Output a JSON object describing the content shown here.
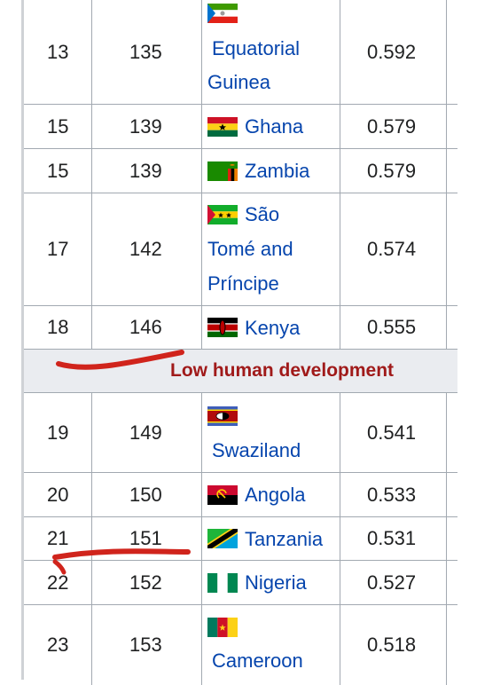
{
  "section_label": "Low human development",
  "rows_top": [
    {
      "rank": "13",
      "hdi_rank": "135",
      "country_lines": [
        "Equatorial",
        "Guinea"
      ],
      "flag": "equatorial-guinea-flag-icon",
      "value": "0.592"
    },
    {
      "rank": "15",
      "hdi_rank": "139",
      "country_lines": [
        "Ghana"
      ],
      "flag": "ghana-flag-icon",
      "value": "0.579"
    },
    {
      "rank": "15",
      "hdi_rank": "139",
      "country_lines": [
        "Zambia"
      ],
      "flag": "zambia-flag-icon",
      "value": "0.579"
    },
    {
      "rank": "17",
      "hdi_rank": "142",
      "country_lines": [
        "São",
        "Tomé and",
        "Príncipe"
      ],
      "flag": "sao-tome-flag-icon",
      "value": "0.574"
    },
    {
      "rank": "18",
      "hdi_rank": "146",
      "country_lines": [
        "Kenya"
      ],
      "flag": "kenya-flag-icon",
      "value": "0.555"
    }
  ],
  "rows_bottom": [
    {
      "rank": "19",
      "hdi_rank": "149",
      "country_lines": [
        "Swaziland"
      ],
      "flag": "eswatini-flag-icon",
      "value": "0.541"
    },
    {
      "rank": "20",
      "hdi_rank": "150",
      "country_lines": [
        "Angola"
      ],
      "flag": "angola-flag-icon",
      "value": "0.533"
    },
    {
      "rank": "21",
      "hdi_rank": "151",
      "country_lines": [
        "Tanzania"
      ],
      "flag": "tanzania-flag-icon",
      "value": "0.531"
    },
    {
      "rank": "22",
      "hdi_rank": "152",
      "country_lines": [
        "Nigeria"
      ],
      "flag": "nigeria-flag-icon",
      "value": "0.527"
    },
    {
      "rank": "23",
      "hdi_rank": "153",
      "country_lines": [
        "Cameroon"
      ],
      "flag": "cameroon-flag-icon",
      "value": "0.518"
    }
  ],
  "colors": {
    "link": "#0645ad",
    "section_text": "#a01a1a",
    "section_bg": "#eaecf0",
    "marker": "#d0241c"
  }
}
